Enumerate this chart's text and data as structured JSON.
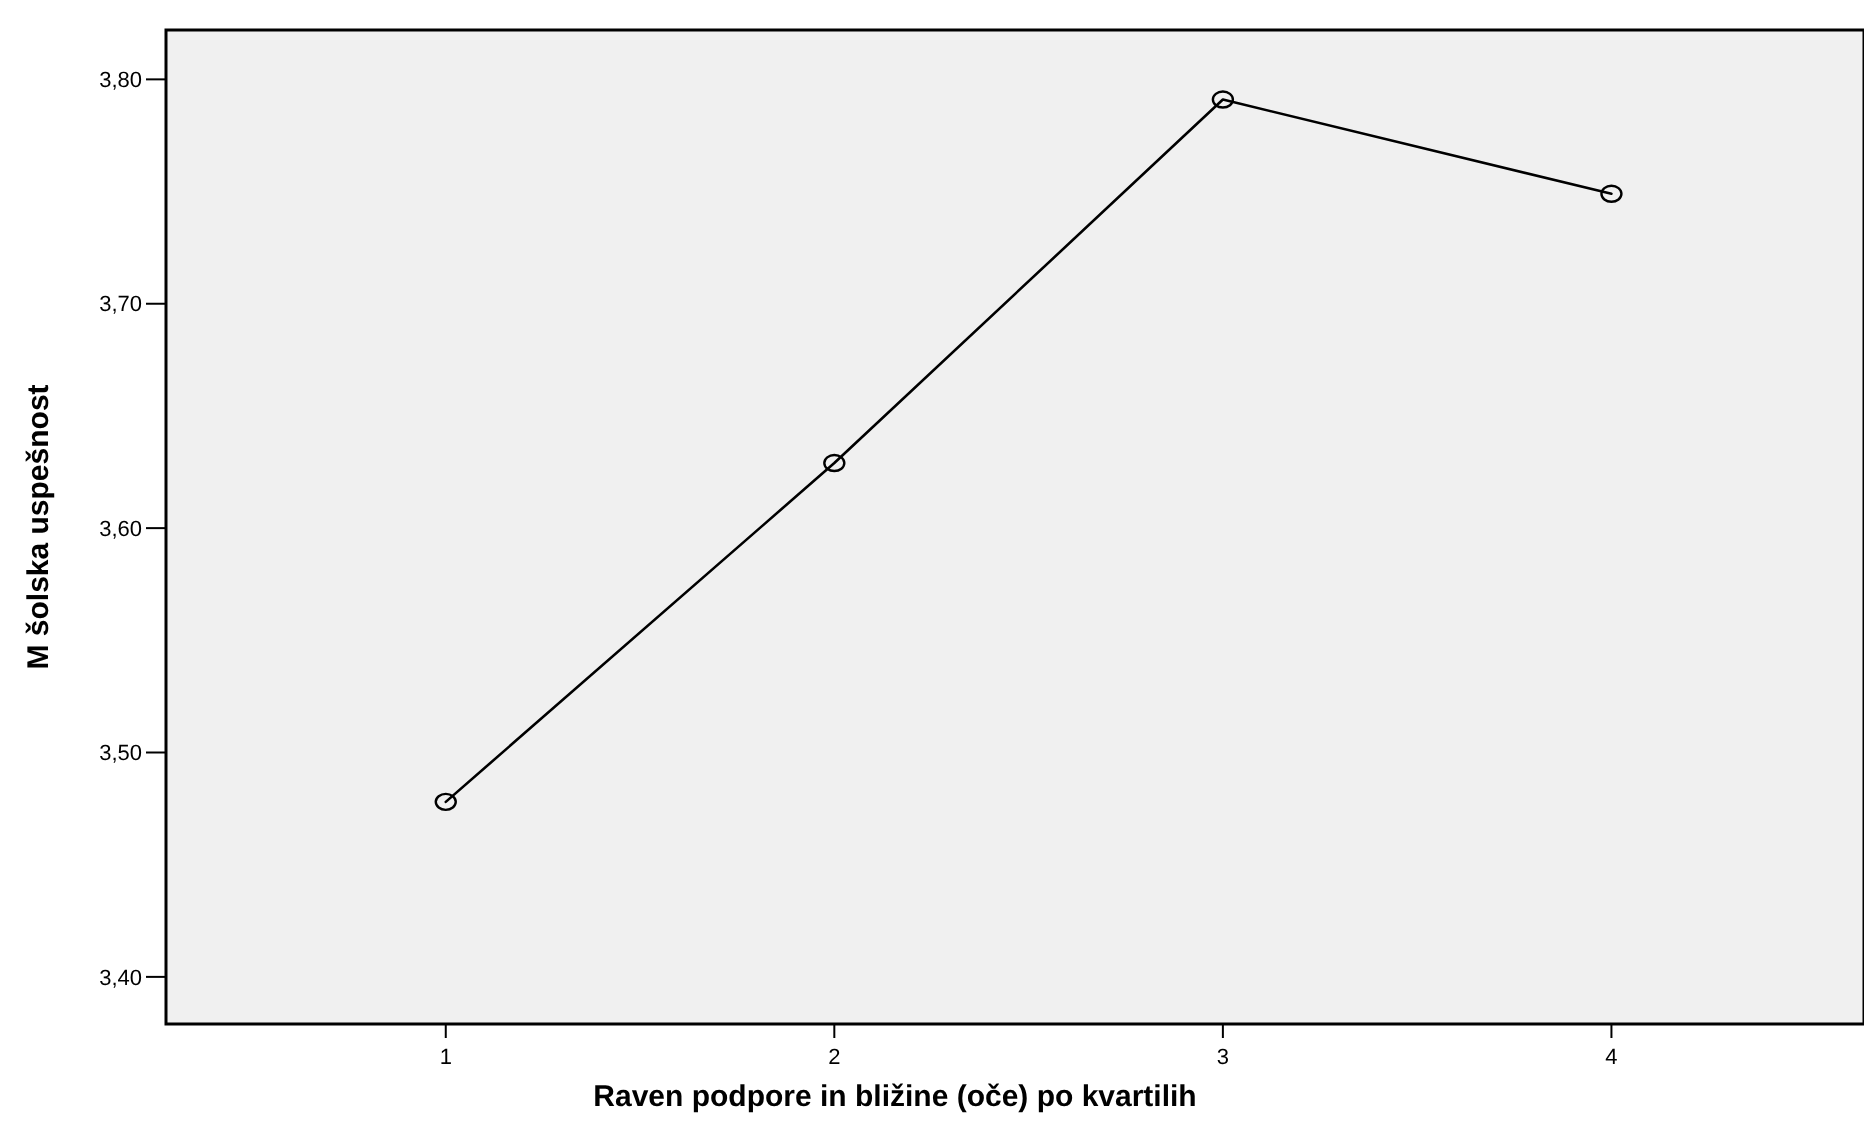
{
  "chart_data": {
    "type": "line",
    "xlabel": "Raven podpore in bližine (oče) po kvartilih",
    "ylabel": "M šolska uspešnost",
    "x": [
      1,
      2,
      3,
      4
    ],
    "xlim": [
      0.28,
      4.65
    ],
    "xticks": [
      1,
      2,
      3,
      4
    ],
    "ylim": [
      3.379,
      3.822
    ],
    "yticks": [
      {
        "value": 3.4,
        "label": "3,40"
      },
      {
        "value": 3.5,
        "label": "3,50"
      },
      {
        "value": 3.6,
        "label": "3,60"
      },
      {
        "value": 3.7,
        "label": "3,70"
      },
      {
        "value": 3.8,
        "label": "3,80"
      }
    ],
    "series": [
      {
        "color": "#000000",
        "values": [
          3.478,
          3.629,
          3.791,
          3.749
        ]
      }
    ],
    "marker": "circle",
    "line_style": "solid",
    "grid": false
  }
}
